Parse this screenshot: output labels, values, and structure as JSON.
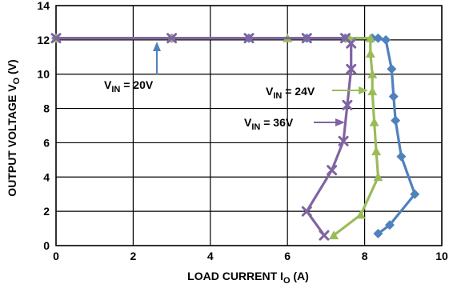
{
  "chart_data": {
    "type": "line",
    "xlabel": {
      "main": "LOAD CURRENT I",
      "sub": "O",
      "tail": " (A)"
    },
    "ylabel": {
      "main": "OUTPUT VOLTAGE V",
      "sub": "O",
      "tail": " (V)"
    },
    "xlim": [
      0,
      10
    ],
    "ylim": [
      0,
      14
    ],
    "xticks": [
      0,
      2,
      4,
      6,
      8,
      10
    ],
    "yticks": [
      0,
      2,
      4,
      6,
      8,
      10,
      12,
      14
    ],
    "grid": true,
    "series": [
      {
        "name": "VIN = 20V",
        "color": "#4f81bd",
        "marker": "diamond",
        "points": [
          [
            0,
            12.1
          ],
          [
            3,
            12.1
          ],
          [
            5,
            12.1
          ],
          [
            6.5,
            12.1
          ],
          [
            7.5,
            12.1
          ],
          [
            8.2,
            12.1
          ],
          [
            8.35,
            12.1
          ],
          [
            8.55,
            12.0
          ],
          [
            8.7,
            10.3
          ],
          [
            8.75,
            8.7
          ],
          [
            8.8,
            7.3
          ],
          [
            8.95,
            5.2
          ],
          [
            9.3,
            3.0
          ],
          [
            8.65,
            1.2
          ],
          [
            8.35,
            0.7
          ]
        ]
      },
      {
        "name": "VIN = 24V",
        "color": "#9bbb59",
        "marker": "triangle",
        "points": [
          [
            0,
            12.1
          ],
          [
            3,
            12.1
          ],
          [
            6,
            12.1
          ],
          [
            7.6,
            12.1
          ],
          [
            8.15,
            12.1
          ],
          [
            8.15,
            11.2
          ],
          [
            8.2,
            10.0
          ],
          [
            8.2,
            9.0
          ],
          [
            8.25,
            7.2
          ],
          [
            8.3,
            5.5
          ],
          [
            8.35,
            4.0
          ],
          [
            7.9,
            1.8
          ],
          [
            7.2,
            0.6
          ]
        ]
      },
      {
        "name": "VIN = 36V",
        "color": "#8064a2",
        "marker": "x",
        "points": [
          [
            0,
            12.1
          ],
          [
            3,
            12.1
          ],
          [
            5,
            12.1
          ],
          [
            6.5,
            12.1
          ],
          [
            7.5,
            12.1
          ],
          [
            7.65,
            11.8
          ],
          [
            7.65,
            10.3
          ],
          [
            7.55,
            8.2
          ],
          [
            7.45,
            6.1
          ],
          [
            7.15,
            4.4
          ],
          [
            6.5,
            2.0
          ],
          [
            6.95,
            0.6
          ]
        ]
      }
    ],
    "annotations": [
      {
        "label_main": "V",
        "label_sub": "IN",
        "label_tail": " = 20V",
        "series": 0
      },
      {
        "label_main": "V",
        "label_sub": "IN",
        "label_tail": " = 24V",
        "series": 1
      },
      {
        "label_main": "V",
        "label_sub": "IN",
        "label_tail": " = 36V",
        "series": 2
      }
    ]
  }
}
